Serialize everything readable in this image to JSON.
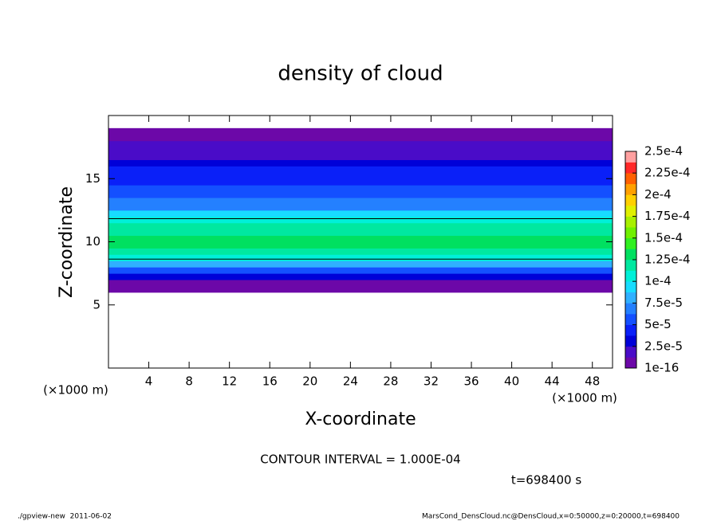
{
  "chart_data": {
    "type": "profile-shade",
    "title": "density of cloud",
    "x_label": "X-coordinate",
    "y_label": "Z-coordinate",
    "y_unit": "(×1000 m)",
    "x_unit": "(×1000 m)",
    "contour_note": "CONTOUR INTERVAL = 1.000E-04",
    "time_note": "t=698400 s",
    "footer_left": "./gpview-new  2011-06-02",
    "footer_right": "MarsCond_DensCloud.nc@DensCloud,x=0:50000,z=0:20000,t=698400",
    "xlim": [
      0,
      50
    ],
    "xticks": [
      4,
      8,
      12,
      16,
      20,
      24,
      28,
      32,
      36,
      40,
      44,
      48
    ],
    "ylim": [
      0,
      20
    ],
    "yticks": [
      5,
      10,
      15
    ],
    "z": [
      6.25,
      6.75,
      7.25,
      7.75,
      8.25,
      8.75,
      9.25,
      9.75,
      10.25,
      10.75,
      11.25,
      11.75,
      12.25,
      12.75,
      13.25,
      13.75,
      14.25,
      14.75,
      15.25,
      15.75,
      16.25,
      16.75,
      17.25,
      17.75,
      18.25,
      18.75
    ],
    "values": [
      5e-06,
      1.2e-05,
      3e-05,
      6e-05,
      8.5e-05,
      0.000105,
      0.00012,
      0.00013,
      0.00013,
      0.000125,
      0.000115,
      0.000102,
      9e-05,
      7.5e-05,
      6.5e-05,
      6e-05,
      5.5e-05,
      5e-05,
      4.5e-05,
      4e-05,
      3.5e-05,
      2.5e-05,
      2e-05,
      1.5e-05,
      1e-05,
      5e-06
    ],
    "contour_levels": [
      0.0001
    ],
    "colorbar_ticks": [
      1e-16,
      {
        "value": 2.5e-05,
        "label": "2.5e-5"
      },
      {
        "value": 5e-05,
        "label": "5e-5"
      },
      {
        "value": 7.5e-05,
        "label": "7.5e-5"
      },
      {
        "value": 0.0001,
        "label": "1e-4"
      },
      {
        "value": 0.000125,
        "label": "1.25e-4"
      },
      {
        "value": 0.00015,
        "label": "1.5e-4"
      },
      {
        "value": 0.000175,
        "label": "1.75e-4"
      },
      {
        "value": 0.0002,
        "label": "2e-4"
      },
      {
        "value": 0.000225,
        "label": "2.25e-4"
      },
      {
        "value": 0.00025,
        "label": "2.5e-4"
      }
    ],
    "colors": [
      "#6c08a8",
      "#4a0cc8",
      "#0000d8",
      "#0a20f8",
      "#1450ff",
      "#2480ff",
      "#30b0ff",
      "#18dcff",
      "#00f0d8",
      "#00e8a0",
      "#00e060",
      "#30f020",
      "#70f000",
      "#a8f000",
      "#e0f000",
      "#ffd000",
      "#ffa000",
      "#ff6000",
      "#ff2828",
      "#ffa0a0"
    ]
  }
}
